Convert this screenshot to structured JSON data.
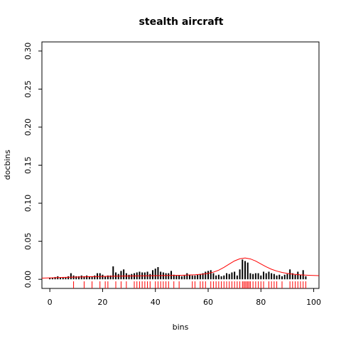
{
  "chart_data": {
    "type": "bar",
    "title": "stealth aircraft",
    "xlabel": "bins",
    "ylabel": "docbins",
    "xlim": [
      -3,
      102
    ],
    "ylim": [
      -0.012,
      0.312
    ],
    "x_ticks": [
      0,
      20,
      40,
      60,
      80,
      100
    ],
    "y_ticks": [
      0.0,
      0.05,
      0.1,
      0.15,
      0.2,
      0.25,
      0.3
    ],
    "y_tick_labels": [
      "0.00",
      "0.05",
      "0.10",
      "0.15",
      "0.20",
      "0.25",
      "0.30"
    ],
    "grid": false,
    "series": [
      {
        "kind": "histogram-spikes",
        "color": "#000000",
        "x": [
          0,
          1,
          2,
          3,
          4,
          5,
          6,
          7,
          8,
          9,
          10,
          11,
          12,
          13,
          14,
          15,
          16,
          17,
          18,
          19,
          20,
          21,
          22,
          23,
          24,
          25,
          26,
          27,
          28,
          29,
          30,
          31,
          32,
          33,
          34,
          35,
          36,
          37,
          38,
          39,
          40,
          41,
          42,
          43,
          44,
          45,
          46,
          47,
          48,
          49,
          50,
          51,
          52,
          53,
          54,
          55,
          56,
          57,
          58,
          59,
          60,
          61,
          62,
          63,
          64,
          65,
          66,
          67,
          68,
          69,
          70,
          71,
          72,
          73,
          74,
          75,
          76,
          77,
          78,
          79,
          80,
          81,
          82,
          83,
          84,
          85,
          86,
          87,
          88,
          89,
          90,
          91,
          92,
          93,
          94,
          95,
          96,
          97
        ],
        "values": [
          0.002,
          0.002,
          0.003,
          0.004,
          0.002,
          0.003,
          0.003,
          0.004,
          0.008,
          0.005,
          0.004,
          0.004,
          0.005,
          0.004,
          0.005,
          0.004,
          0.004,
          0.005,
          0.008,
          0.008,
          0.006,
          0.004,
          0.005,
          0.005,
          0.017,
          0.009,
          0.007,
          0.011,
          0.013,
          0.008,
          0.006,
          0.007,
          0.008,
          0.009,
          0.01,
          0.009,
          0.009,
          0.01,
          0.007,
          0.012,
          0.014,
          0.016,
          0.01,
          0.009,
          0.008,
          0.008,
          0.011,
          0.006,
          0.005,
          0.005,
          0.004,
          0.005,
          0.008,
          0.006,
          0.005,
          0.005,
          0.006,
          0.007,
          0.008,
          0.01,
          0.011,
          0.012,
          0.008,
          0.005,
          0.006,
          0.004,
          0.005,
          0.008,
          0.007,
          0.009,
          0.01,
          0.005,
          0.013,
          0.026,
          0.024,
          0.022,
          0.008,
          0.007,
          0.008,
          0.008,
          0.005,
          0.01,
          0.008,
          0.01,
          0.008,
          0.007,
          0.005,
          0.006,
          0.004,
          0.006,
          0.007,
          0.013,
          0.008,
          0.006,
          0.01,
          0.006,
          0.012,
          0.004
        ]
      },
      {
        "kind": "density-curve",
        "color": "#ff0000",
        "x": [
          -3,
          0,
          5,
          10,
          15,
          20,
          25,
          30,
          35,
          40,
          45,
          50,
          55,
          58,
          60,
          62,
          64,
          66,
          68,
          70,
          72,
          74,
          76,
          78,
          80,
          82,
          84,
          86,
          88,
          90,
          92,
          95,
          98,
          102
        ],
        "values": [
          0.0015,
          0.0019,
          0.0025,
          0.003,
          0.0034,
          0.0038,
          0.0041,
          0.0044,
          0.0046,
          0.0048,
          0.005,
          0.0053,
          0.006,
          0.0068,
          0.0078,
          0.0094,
          0.012,
          0.0157,
          0.02,
          0.0242,
          0.027,
          0.028,
          0.0268,
          0.024,
          0.0202,
          0.0164,
          0.0132,
          0.0108,
          0.009,
          0.0077,
          0.0068,
          0.0059,
          0.0053,
          0.0048
        ]
      },
      {
        "kind": "rug",
        "color": "#ff0000",
        "x": [
          9,
          13,
          16,
          19,
          21,
          22,
          25,
          27,
          29,
          32,
          33,
          34,
          35,
          36,
          37,
          38,
          40,
          41,
          42,
          43,
          44,
          45,
          47,
          49,
          54,
          55,
          57,
          58,
          59,
          61,
          62,
          63,
          64,
          65,
          66,
          67,
          68,
          69,
          70,
          71,
          72,
          73,
          73.5,
          74,
          74.5,
          75,
          75.5,
          76,
          77,
          78,
          79,
          80,
          81,
          83,
          84,
          85,
          86,
          88,
          91,
          92,
          93,
          94,
          95,
          96,
          97
        ]
      }
    ]
  }
}
